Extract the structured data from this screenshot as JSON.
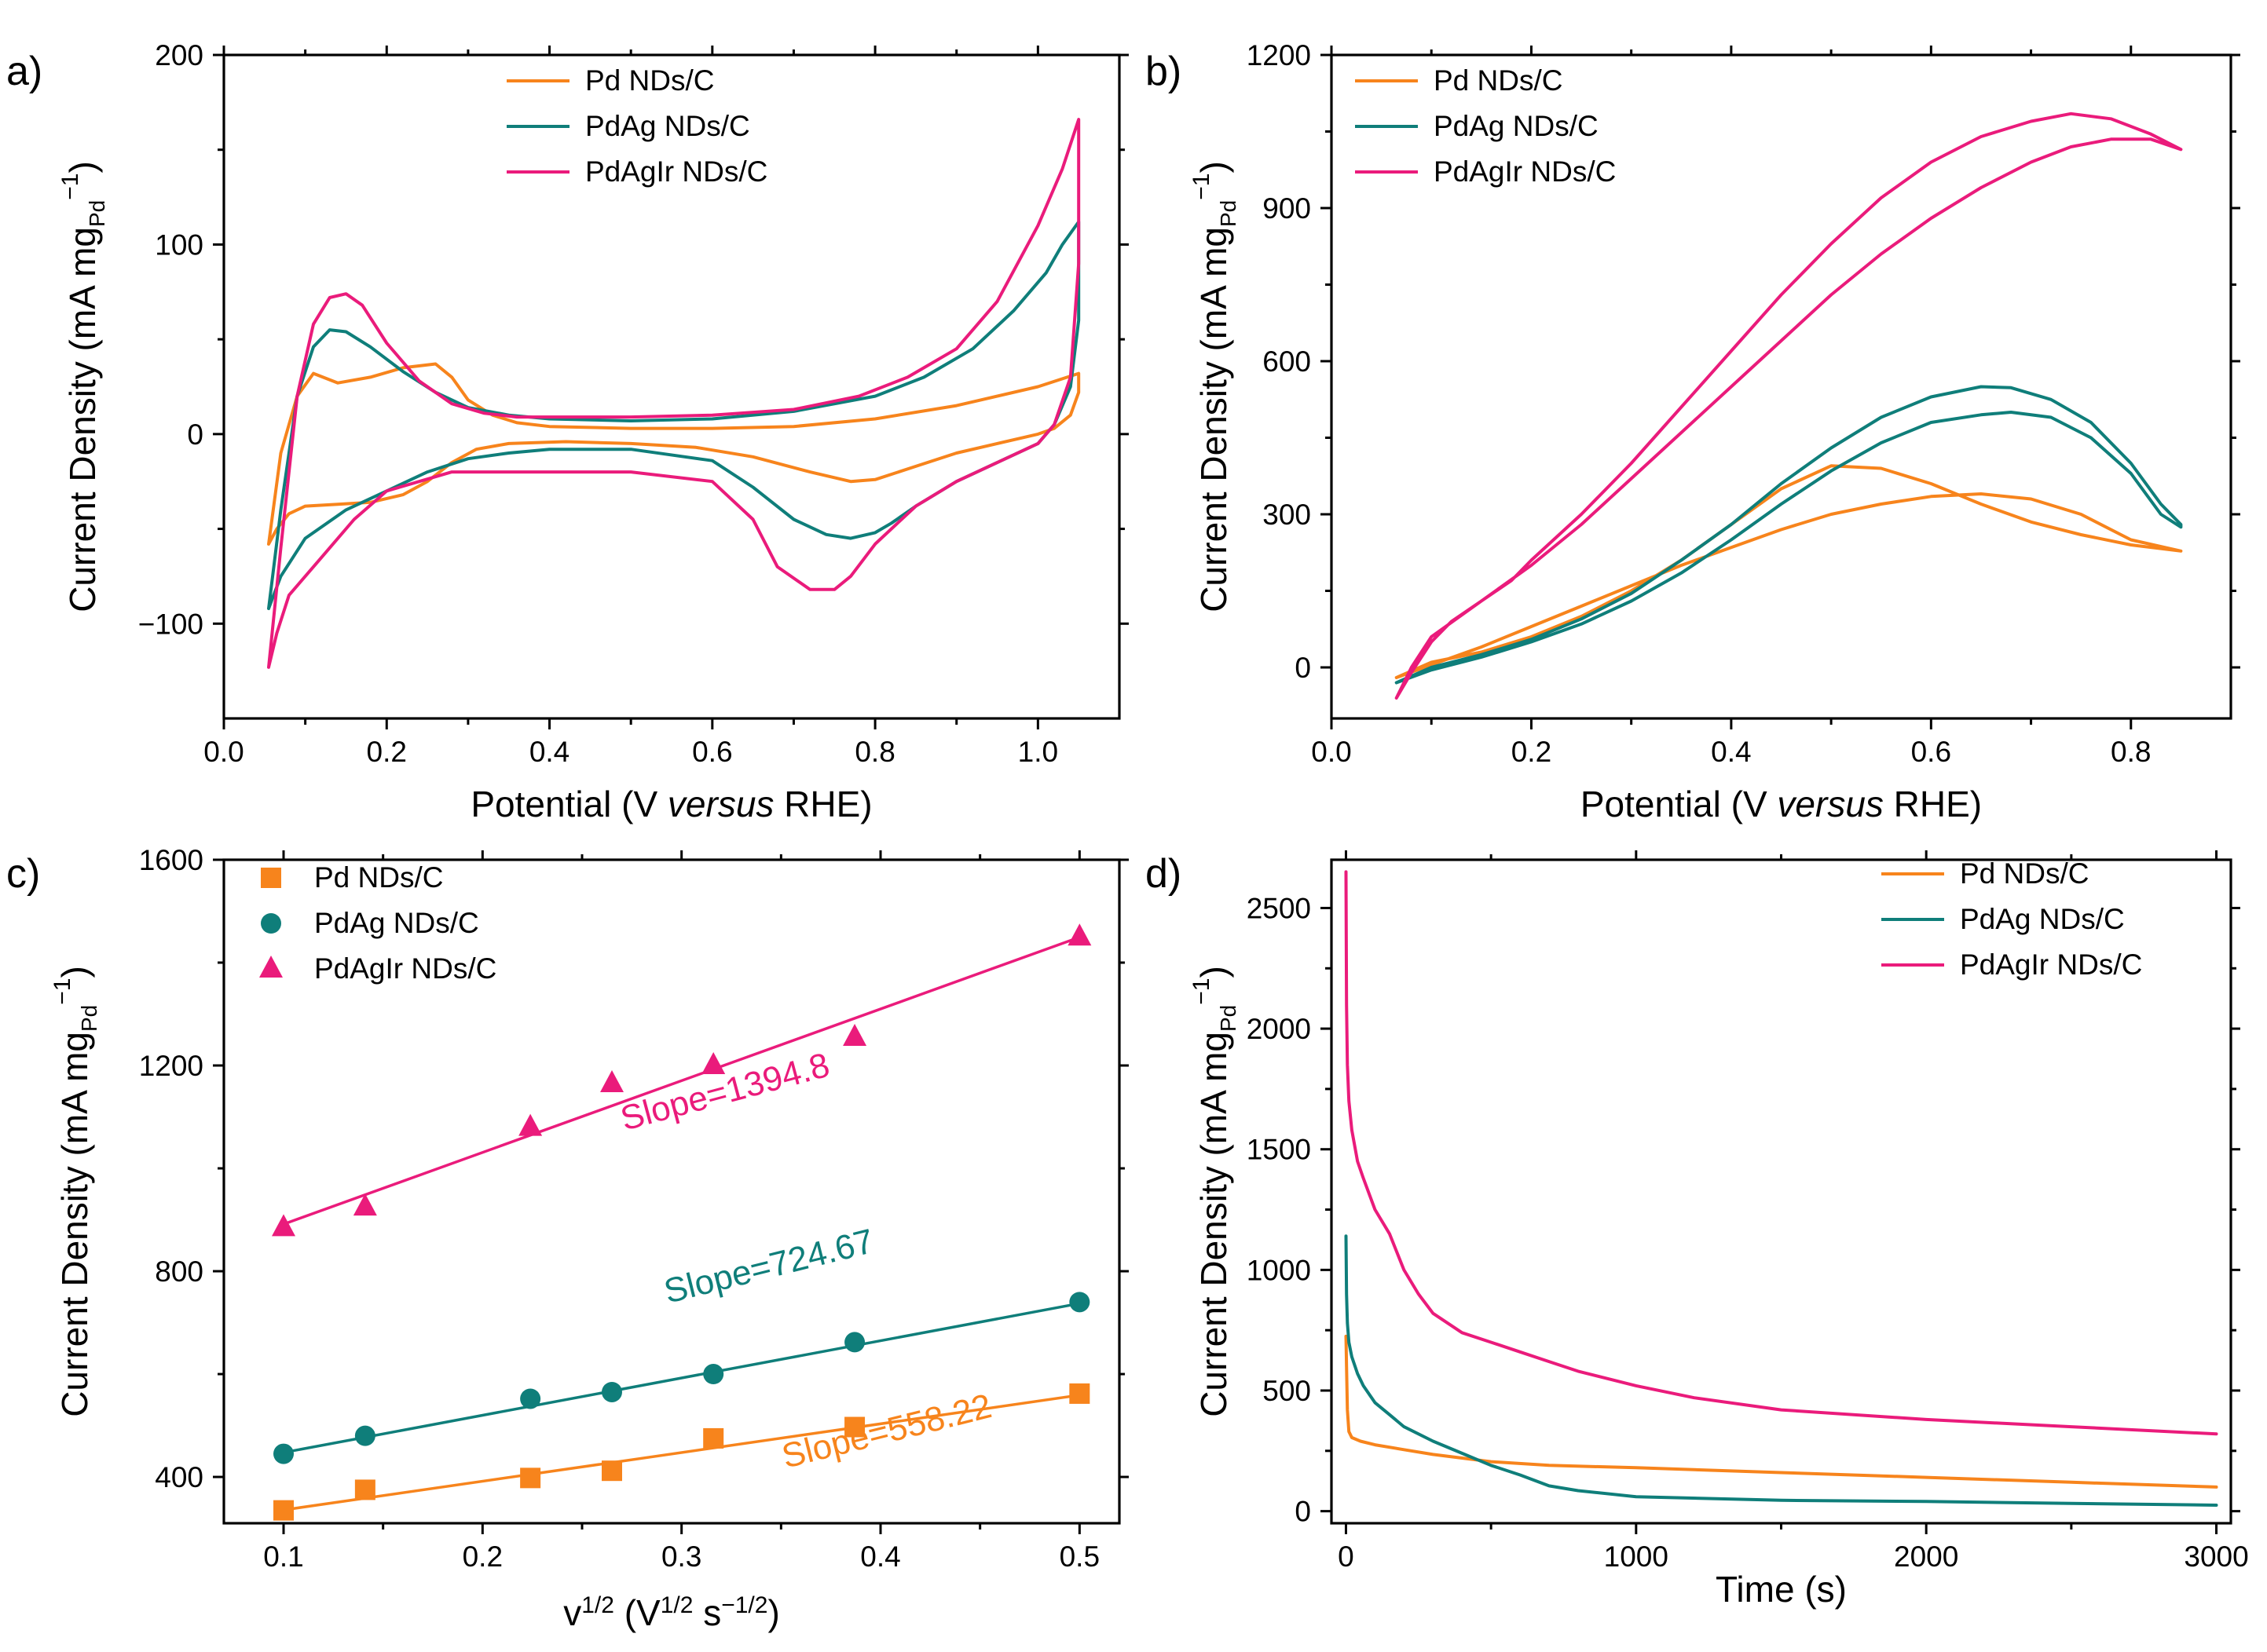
{
  "colors": {
    "pd": "#F7841C",
    "pdag": "#0F7E7A",
    "pdagir": "#EA1B7B"
  },
  "chart_data": [
    {
      "panel": "a)",
      "type": "line",
      "xlabel_parts": [
        "Potential (V ",
        "versus",
        " RHE)"
      ],
      "ylabel": "Current Density (mA mg",
      "ylabel_sub": "Pd",
      "ylabel_sup": "−1",
      "ylabel_end": ")",
      "xlim": [
        0.0,
        1.1
      ],
      "ylim": [
        -150,
        200
      ],
      "xticks": [
        0.0,
        0.2,
        0.4,
        0.6,
        0.8,
        1.0
      ],
      "xtick_labels": [
        "0.0",
        "0.2",
        "0.4",
        "0.6",
        "0.8",
        "1.0"
      ],
      "yticks": [
        -100,
        0,
        100,
        200
      ],
      "ytick_labels": [
        "−100",
        "0",
        "100",
        "200"
      ],
      "legend": [
        "Pd NDs/C",
        "PdAg NDs/C",
        "PdAgIr NDs/C"
      ],
      "series": [
        {
          "name": "Pd NDs/C",
          "color_key": "pd",
          "x": [
            0.055,
            0.07,
            0.09,
            0.11,
            0.14,
            0.18,
            0.22,
            0.26,
            0.28,
            0.3,
            0.33,
            0.36,
            0.4,
            0.5,
            0.6,
            0.7,
            0.8,
            0.9,
            1.0,
            1.05,
            1.05,
            1.04,
            1.02,
            1.0,
            0.95,
            0.9,
            0.85,
            0.8,
            0.77,
            0.72,
            0.65,
            0.58,
            0.5,
            0.42,
            0.35,
            0.31,
            0.28,
            0.25,
            0.22,
            0.18,
            0.14,
            0.1,
            0.08,
            0.065,
            0.055
          ],
          "y": [
            -58,
            -10,
            20,
            32,
            27,
            30,
            35,
            37,
            30,
            18,
            10,
            6,
            4,
            3,
            3,
            4,
            8,
            15,
            25,
            32,
            22,
            10,
            3,
            0,
            -5,
            -10,
            -17,
            -24,
            -25,
            -20,
            -12,
            -7,
            -5,
            -4,
            -5,
            -8,
            -15,
            -25,
            -32,
            -36,
            -37,
            -38,
            -42,
            -50,
            -58
          ]
        },
        {
          "name": "PdAg NDs/C",
          "color_key": "pdag",
          "x": [
            0.055,
            0.07,
            0.09,
            0.11,
            0.13,
            0.15,
            0.18,
            0.22,
            0.26,
            0.3,
            0.35,
            0.4,
            0.5,
            0.6,
            0.7,
            0.8,
            0.86,
            0.92,
            0.97,
            1.01,
            1.03,
            1.05,
            1.05,
            1.04,
            1.02,
            1.0,
            0.95,
            0.9,
            0.85,
            0.82,
            0.8,
            0.77,
            0.74,
            0.7,
            0.65,
            0.6,
            0.5,
            0.4,
            0.35,
            0.3,
            0.25,
            0.2,
            0.15,
            0.1,
            0.07,
            0.055
          ],
          "y": [
            -92,
            -40,
            20,
            46,
            55,
            54,
            46,
            33,
            22,
            14,
            10,
            8,
            7,
            8,
            12,
            20,
            30,
            45,
            65,
            85,
            100,
            112,
            60,
            25,
            5,
            -5,
            -15,
            -25,
            -38,
            -47,
            -52,
            -55,
            -53,
            -45,
            -28,
            -14,
            -8,
            -8,
            -10,
            -13,
            -20,
            -30,
            -40,
            -55,
            -75,
            -92
          ]
        },
        {
          "name": "PdAgIr NDs/C",
          "color_key": "pdagir",
          "x": [
            0.055,
            0.07,
            0.09,
            0.11,
            0.13,
            0.15,
            0.17,
            0.2,
            0.24,
            0.28,
            0.32,
            0.36,
            0.4,
            0.5,
            0.6,
            0.7,
            0.78,
            0.84,
            0.9,
            0.95,
            1.0,
            1.03,
            1.05,
            1.05,
            1.04,
            1.02,
            1.0,
            0.95,
            0.9,
            0.85,
            0.8,
            0.77,
            0.75,
            0.72,
            0.68,
            0.65,
            0.6,
            0.5,
            0.4,
            0.32,
            0.28,
            0.24,
            0.2,
            0.16,
            0.12,
            0.08,
            0.065,
            0.055
          ],
          "y": [
            -123,
            -60,
            20,
            58,
            72,
            74,
            68,
            48,
            28,
            16,
            11,
            9,
            9,
            9,
            10,
            13,
            20,
            30,
            45,
            70,
            110,
            140,
            166,
            90,
            30,
            5,
            -5,
            -15,
            -25,
            -38,
            -58,
            -75,
            -82,
            -82,
            -70,
            -45,
            -25,
            -20,
            -20,
            -20,
            -20,
            -25,
            -30,
            -45,
            -65,
            -85,
            -105,
            -123
          ]
        }
      ]
    },
    {
      "panel": "b)",
      "type": "line",
      "xlabel_parts": [
        "Potential (V ",
        "versus",
        " RHE)"
      ],
      "ylabel": "Current Density (mA mg",
      "ylabel_sub": "Pd",
      "ylabel_sup": "−1",
      "ylabel_end": ")",
      "xlim": [
        0.0,
        0.9
      ],
      "ylim": [
        -100,
        1200
      ],
      "xticks": [
        0.0,
        0.2,
        0.4,
        0.6,
        0.8
      ],
      "xtick_labels": [
        "0.0",
        "0.2",
        "0.4",
        "0.6",
        "0.8"
      ],
      "yticks": [
        0,
        300,
        600,
        900,
        1200
      ],
      "ytick_labels": [
        "0",
        "300",
        "600",
        "900",
        "1200"
      ],
      "legend": [
        "Pd NDs/C",
        "PdAg NDs/C",
        "PdAgIr NDs/C"
      ],
      "series": [
        {
          "name": "Pd NDs/C",
          "color_key": "pd",
          "x": [
            0.065,
            0.1,
            0.15,
            0.2,
            0.25,
            0.3,
            0.35,
            0.4,
            0.45,
            0.5,
            0.55,
            0.6,
            0.65,
            0.7,
            0.75,
            0.8,
            0.85,
            0.85,
            0.8,
            0.75,
            0.7,
            0.65,
            0.6,
            0.55,
            0.5,
            0.45,
            0.4,
            0.35,
            0.3,
            0.25,
            0.2,
            0.15,
            0.1,
            0.065
          ],
          "y": [
            -20,
            10,
            30,
            60,
            100,
            150,
            210,
            280,
            350,
            395,
            390,
            360,
            320,
            285,
            260,
            240,
            228,
            228,
            250,
            300,
            330,
            340,
            335,
            320,
            300,
            270,
            235,
            200,
            160,
            120,
            80,
            40,
            5,
            -20
          ]
        },
        {
          "name": "PdAg NDs/C",
          "color_key": "pdag",
          "x": [
            0.065,
            0.1,
            0.15,
            0.2,
            0.25,
            0.3,
            0.35,
            0.4,
            0.45,
            0.5,
            0.55,
            0.6,
            0.65,
            0.68,
            0.72,
            0.76,
            0.8,
            0.83,
            0.85,
            0.85,
            0.83,
            0.8,
            0.76,
            0.72,
            0.68,
            0.65,
            0.6,
            0.55,
            0.5,
            0.45,
            0.4,
            0.35,
            0.3,
            0.25,
            0.2,
            0.15,
            0.1,
            0.065
          ],
          "y": [
            -30,
            0,
            25,
            55,
            95,
            145,
            210,
            280,
            360,
            430,
            490,
            530,
            550,
            548,
            525,
            480,
            400,
            320,
            280,
            275,
            300,
            380,
            450,
            490,
            500,
            495,
            480,
            440,
            385,
            320,
            250,
            185,
            130,
            85,
            50,
            20,
            -5,
            -30
          ]
        },
        {
          "name": "PdAgIr NDs/C",
          "color_key": "pdagir",
          "x": [
            0.065,
            0.08,
            0.1,
            0.12,
            0.15,
            0.18,
            0.2,
            0.25,
            0.3,
            0.35,
            0.4,
            0.45,
            0.5,
            0.55,
            0.6,
            0.65,
            0.7,
            0.74,
            0.78,
            0.82,
            0.85,
            0.85,
            0.82,
            0.78,
            0.74,
            0.7,
            0.65,
            0.6,
            0.55,
            0.5,
            0.45,
            0.4,
            0.35,
            0.3,
            0.25,
            0.2,
            0.15,
            0.1,
            0.08,
            0.065
          ],
          "y": [
            -60,
            -10,
            50,
            90,
            130,
            170,
            210,
            300,
            400,
            510,
            620,
            730,
            830,
            920,
            990,
            1040,
            1070,
            1085,
            1075,
            1045,
            1015,
            1015,
            1035,
            1035,
            1020,
            990,
            940,
            880,
            810,
            730,
            640,
            550,
            460,
            370,
            280,
            200,
            130,
            60,
            0,
            -60
          ]
        }
      ]
    },
    {
      "panel": "c)",
      "type": "scatter",
      "xlabel_main": "v",
      "xlabel_sup1": "1/2",
      "xlabel_mid": " (V",
      "xlabel_sup2": "1/2",
      "xlabel_mid2": " s",
      "xlabel_sup3": "−1/2",
      "xlabel_end": ")",
      "ylabel": "Current Density (mA mg",
      "ylabel_sub": "Pd",
      "ylabel_sup": "−1",
      "ylabel_end": ")",
      "xlim": [
        0.07,
        0.52
      ],
      "ylim": [
        310,
        1600
      ],
      "xticks": [
        0.1,
        0.2,
        0.3,
        0.4,
        0.5
      ],
      "xtick_labels": [
        "0.1",
        "0.2",
        "0.3",
        "0.4",
        "0.5"
      ],
      "yticks": [
        400,
        800,
        1200,
        1600
      ],
      "ytick_labels": [
        "400",
        "800",
        "1200",
        "1600"
      ],
      "legend": [
        "Pd NDs/C",
        "PdAg NDs/C",
        "PdAgIr NDs/C"
      ],
      "series": [
        {
          "name": "Pd NDs/C",
          "color_key": "pd",
          "marker": "square",
          "x": [
            0.1,
            0.141,
            0.224,
            0.265,
            0.316,
            0.387,
            0.5
          ],
          "y": [
            335,
            375,
            398,
            412,
            475,
            497,
            562
          ],
          "fit": {
            "intercept": 280,
            "slope": 558.22
          },
          "slope_label": "Slope=558.22"
        },
        {
          "name": "PdAg NDs/C",
          "color_key": "pdag",
          "marker": "circle",
          "x": [
            0.1,
            0.141,
            0.224,
            0.265,
            0.316,
            0.387,
            0.5
          ],
          "y": [
            445,
            480,
            552,
            565,
            600,
            662,
            740
          ],
          "fit": {
            "intercept": 375,
            "slope": 724.67
          },
          "slope_label": "Slope=724.67"
        },
        {
          "name": "PdAgIr NDs/C",
          "color_key": "pdagir",
          "marker": "triangle",
          "x": [
            0.1,
            0.141,
            0.224,
            0.265,
            0.316,
            0.387,
            0.5
          ],
          "y": [
            885,
            925,
            1080,
            1165,
            1200,
            1255,
            1450
          ],
          "fit": {
            "intercept": 752,
            "slope": 1394.8
          },
          "slope_label": "Slope=1394.8"
        }
      ]
    },
    {
      "panel": "d)",
      "type": "line",
      "xlabel_parts": [
        "Time (s)"
      ],
      "ylabel": "Current Density (mA mg",
      "ylabel_sub": "Pd",
      "ylabel_sup": "−1",
      "ylabel_end": ")",
      "xlim": [
        -50,
        3050
      ],
      "ylim": [
        -50,
        2700
      ],
      "xticks": [
        0,
        1000,
        2000,
        3000
      ],
      "xtick_labels": [
        "0",
        "1000",
        "2000",
        "3000"
      ],
      "yticks": [
        0,
        500,
        1000,
        1500,
        2000,
        2500
      ],
      "ytick_labels": [
        "0",
        "500",
        "1000",
        "1500",
        "2000",
        "2500"
      ],
      "legend": [
        "Pd NDs/C",
        "PdAg NDs/C",
        "PdAgIr NDs/C"
      ],
      "series": [
        {
          "name": "Pd NDs/C",
          "color_key": "pd",
          "x": [
            0,
            2,
            5,
            10,
            20,
            50,
            100,
            200,
            300,
            400,
            500,
            700,
            1000,
            1500,
            2000,
            2500,
            3000
          ],
          "y": [
            725,
            600,
            420,
            330,
            305,
            290,
            275,
            255,
            235,
            220,
            205,
            190,
            180,
            160,
            140,
            120,
            100
          ]
        },
        {
          "name": "PdAg NDs/C",
          "color_key": "pdag",
          "x": [
            0,
            2,
            5,
            10,
            20,
            40,
            60,
            100,
            150,
            200,
            300,
            400,
            500,
            600,
            700,
            800,
            1000,
            1500,
            2000,
            2500,
            3000
          ],
          "y": [
            1140,
            900,
            780,
            700,
            640,
            570,
            520,
            450,
            400,
            350,
            290,
            240,
            190,
            150,
            105,
            85,
            60,
            45,
            40,
            32,
            25
          ]
        },
        {
          "name": "PdAgIr NDs/C",
          "color_key": "pdagir",
          "x": [
            0,
            2,
            5,
            10,
            20,
            40,
            60,
            100,
            150,
            200,
            250,
            300,
            400,
            500,
            600,
            700,
            800,
            1000,
            1200,
            1500,
            2000,
            2500,
            3000
          ],
          "y": [
            2650,
            2100,
            1850,
            1700,
            1580,
            1450,
            1380,
            1250,
            1150,
            1000,
            900,
            820,
            740,
            700,
            660,
            620,
            580,
            520,
            470,
            420,
            380,
            350,
            320
          ]
        }
      ]
    }
  ]
}
